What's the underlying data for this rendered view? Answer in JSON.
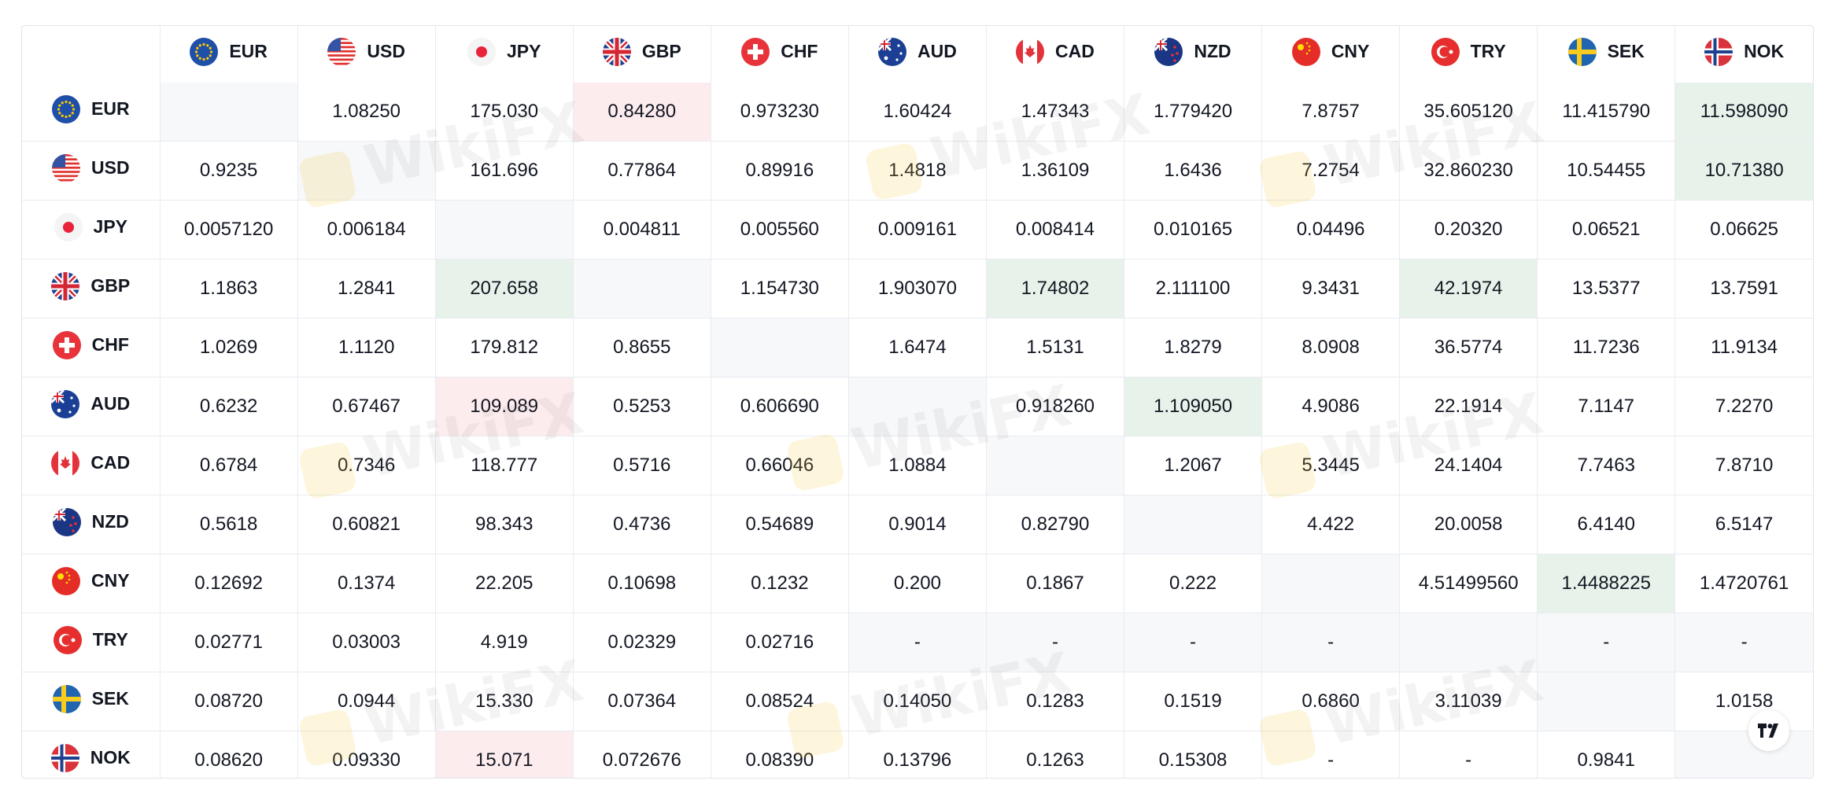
{
  "currencies": [
    "EUR",
    "USD",
    "JPY",
    "GBP",
    "CHF",
    "AUD",
    "CAD",
    "NZD",
    "CNY",
    "TRY",
    "SEK",
    "NOK"
  ],
  "rows": [
    {
      "code": "EUR",
      "cells": [
        {
          "v": "",
          "s": "empty"
        },
        {
          "v": "1.08250",
          "s": ""
        },
        {
          "v": "175.030",
          "s": ""
        },
        {
          "v": "0.84280",
          "s": "down"
        },
        {
          "v": "0.973230",
          "s": ""
        },
        {
          "v": "1.60424",
          "s": ""
        },
        {
          "v": "1.47343",
          "s": ""
        },
        {
          "v": "1.779420",
          "s": ""
        },
        {
          "v": "7.8757",
          "s": ""
        },
        {
          "v": "35.605120",
          "s": ""
        },
        {
          "v": "11.415790",
          "s": ""
        },
        {
          "v": "11.598090",
          "s": "up"
        }
      ]
    },
    {
      "code": "USD",
      "cells": [
        {
          "v": "0.9235",
          "s": ""
        },
        {
          "v": "",
          "s": "empty"
        },
        {
          "v": "161.696",
          "s": ""
        },
        {
          "v": "0.77864",
          "s": ""
        },
        {
          "v": "0.89916",
          "s": ""
        },
        {
          "v": "1.4818",
          "s": ""
        },
        {
          "v": "1.36109",
          "s": ""
        },
        {
          "v": "1.6436",
          "s": ""
        },
        {
          "v": "7.2754",
          "s": ""
        },
        {
          "v": "32.860230",
          "s": ""
        },
        {
          "v": "10.54455",
          "s": ""
        },
        {
          "v": "10.71380",
          "s": "up"
        }
      ]
    },
    {
      "code": "JPY",
      "cells": [
        {
          "v": "0.0057120",
          "s": ""
        },
        {
          "v": "0.006184",
          "s": ""
        },
        {
          "v": "",
          "s": "empty"
        },
        {
          "v": "0.004811",
          "s": ""
        },
        {
          "v": "0.005560",
          "s": ""
        },
        {
          "v": "0.009161",
          "s": ""
        },
        {
          "v": "0.008414",
          "s": ""
        },
        {
          "v": "0.010165",
          "s": ""
        },
        {
          "v": "0.04496",
          "s": ""
        },
        {
          "v": "0.20320",
          "s": ""
        },
        {
          "v": "0.06521",
          "s": ""
        },
        {
          "v": "0.06625",
          "s": ""
        }
      ]
    },
    {
      "code": "GBP",
      "cells": [
        {
          "v": "1.1863",
          "s": ""
        },
        {
          "v": "1.2841",
          "s": ""
        },
        {
          "v": "207.658",
          "s": "up"
        },
        {
          "v": "",
          "s": "empty"
        },
        {
          "v": "1.154730",
          "s": ""
        },
        {
          "v": "1.903070",
          "s": ""
        },
        {
          "v": "1.74802",
          "s": "up"
        },
        {
          "v": "2.111100",
          "s": ""
        },
        {
          "v": "9.3431",
          "s": ""
        },
        {
          "v": "42.1974",
          "s": "up"
        },
        {
          "v": "13.5377",
          "s": ""
        },
        {
          "v": "13.7591",
          "s": ""
        }
      ]
    },
    {
      "code": "CHF",
      "cells": [
        {
          "v": "1.0269",
          "s": ""
        },
        {
          "v": "1.1120",
          "s": ""
        },
        {
          "v": "179.812",
          "s": ""
        },
        {
          "v": "0.8655",
          "s": ""
        },
        {
          "v": "",
          "s": "empty"
        },
        {
          "v": "1.6474",
          "s": ""
        },
        {
          "v": "1.5131",
          "s": ""
        },
        {
          "v": "1.8279",
          "s": ""
        },
        {
          "v": "8.0908",
          "s": ""
        },
        {
          "v": "36.5774",
          "s": ""
        },
        {
          "v": "11.7236",
          "s": ""
        },
        {
          "v": "11.9134",
          "s": ""
        }
      ]
    },
    {
      "code": "AUD",
      "cells": [
        {
          "v": "0.6232",
          "s": ""
        },
        {
          "v": "0.67467",
          "s": ""
        },
        {
          "v": "109.089",
          "s": "down"
        },
        {
          "v": "0.5253",
          "s": ""
        },
        {
          "v": "0.606690",
          "s": ""
        },
        {
          "v": "",
          "s": "empty"
        },
        {
          "v": "0.918260",
          "s": ""
        },
        {
          "v": "1.109050",
          "s": "up"
        },
        {
          "v": "4.9086",
          "s": ""
        },
        {
          "v": "22.1914",
          "s": ""
        },
        {
          "v": "7.1147",
          "s": ""
        },
        {
          "v": "7.2270",
          "s": ""
        }
      ]
    },
    {
      "code": "CAD",
      "cells": [
        {
          "v": "0.6784",
          "s": ""
        },
        {
          "v": "0.7346",
          "s": ""
        },
        {
          "v": "118.777",
          "s": ""
        },
        {
          "v": "0.5716",
          "s": ""
        },
        {
          "v": "0.66046",
          "s": ""
        },
        {
          "v": "1.0884",
          "s": ""
        },
        {
          "v": "",
          "s": "empty"
        },
        {
          "v": "1.2067",
          "s": ""
        },
        {
          "v": "5.3445",
          "s": ""
        },
        {
          "v": "24.1404",
          "s": ""
        },
        {
          "v": "7.7463",
          "s": ""
        },
        {
          "v": "7.8710",
          "s": ""
        }
      ]
    },
    {
      "code": "NZD",
      "cells": [
        {
          "v": "0.5618",
          "s": ""
        },
        {
          "v": "0.60821",
          "s": ""
        },
        {
          "v": "98.343",
          "s": ""
        },
        {
          "v": "0.4736",
          "s": ""
        },
        {
          "v": "0.54689",
          "s": ""
        },
        {
          "v": "0.9014",
          "s": ""
        },
        {
          "v": "0.82790",
          "s": ""
        },
        {
          "v": "",
          "s": "empty"
        },
        {
          "v": "4.422",
          "s": ""
        },
        {
          "v": "20.0058",
          "s": ""
        },
        {
          "v": "6.4140",
          "s": ""
        },
        {
          "v": "6.5147",
          "s": ""
        }
      ]
    },
    {
      "code": "CNY",
      "cells": [
        {
          "v": "0.12692",
          "s": ""
        },
        {
          "v": "0.1374",
          "s": ""
        },
        {
          "v": "22.205",
          "s": ""
        },
        {
          "v": "0.10698",
          "s": ""
        },
        {
          "v": "0.1232",
          "s": ""
        },
        {
          "v": "0.200",
          "s": ""
        },
        {
          "v": "0.1867",
          "s": ""
        },
        {
          "v": "0.222",
          "s": ""
        },
        {
          "v": "",
          "s": "empty"
        },
        {
          "v": "4.51499560",
          "s": ""
        },
        {
          "v": "1.4488225",
          "s": "up"
        },
        {
          "v": "1.4720761",
          "s": ""
        }
      ]
    },
    {
      "code": "TRY",
      "cells": [
        {
          "v": "0.02771",
          "s": ""
        },
        {
          "v": "0.03003",
          "s": ""
        },
        {
          "v": "4.919",
          "s": ""
        },
        {
          "v": "0.02329",
          "s": ""
        },
        {
          "v": "0.02716",
          "s": ""
        },
        {
          "v": "-",
          "s": "empty"
        },
        {
          "v": "-",
          "s": "empty"
        },
        {
          "v": "-",
          "s": "empty"
        },
        {
          "v": "-",
          "s": "empty"
        },
        {
          "v": "",
          "s": "empty"
        },
        {
          "v": "-",
          "s": "empty"
        },
        {
          "v": "-",
          "s": "empty"
        }
      ]
    },
    {
      "code": "SEK",
      "cells": [
        {
          "v": "0.08720",
          "s": ""
        },
        {
          "v": "0.0944",
          "s": ""
        },
        {
          "v": "15.330",
          "s": ""
        },
        {
          "v": "0.07364",
          "s": ""
        },
        {
          "v": "0.08524",
          "s": ""
        },
        {
          "v": "0.14050",
          "s": ""
        },
        {
          "v": "0.1283",
          "s": ""
        },
        {
          "v": "0.1519",
          "s": ""
        },
        {
          "v": "0.6860",
          "s": ""
        },
        {
          "v": "3.11039",
          "s": ""
        },
        {
          "v": "",
          "s": "empty"
        },
        {
          "v": "1.0158",
          "s": ""
        }
      ]
    },
    {
      "code": "NOK",
      "cells": [
        {
          "v": "0.08620",
          "s": ""
        },
        {
          "v": "0.09330",
          "s": ""
        },
        {
          "v": "15.071",
          "s": "down"
        },
        {
          "v": "0.072676",
          "s": ""
        },
        {
          "v": "0.08390",
          "s": ""
        },
        {
          "v": "0.13796",
          "s": ""
        },
        {
          "v": "0.1263",
          "s": ""
        },
        {
          "v": "0.15308",
          "s": ""
        },
        {
          "v": "-",
          "s": ""
        },
        {
          "v": "-",
          "s": ""
        },
        {
          "v": "0.9841",
          "s": ""
        },
        {
          "v": "",
          "s": "empty"
        }
      ]
    }
  ],
  "colors": {
    "up_bg": "#e7f3ea",
    "down_bg": "#fdecee",
    "empty_bg": "#f7f8fa"
  },
  "icons": {
    "flag_prefix": "flag-icon",
    "badge": "tradingview-logo-icon",
    "watermark": "wikifx-logo-icon"
  },
  "watermark_text": "WikiFX"
}
